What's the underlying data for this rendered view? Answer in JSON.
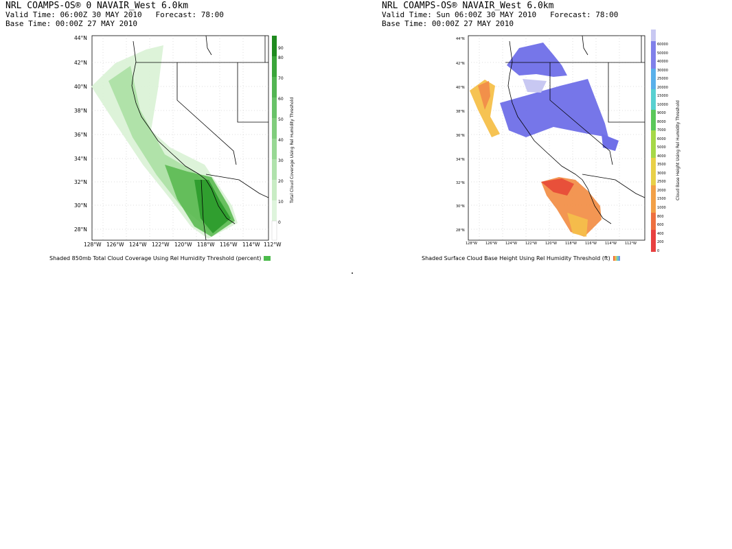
{
  "left_panel": {
    "header_line1": "NRL COAMPS-OS® 0 NAVAIR_West 6.0km",
    "header_line2": "Valid Time: 06:00Z 30 MAY 2010   Forecast: 78:00",
    "header_line3": "Base Time: 00:00Z 27 MAY 2010",
    "lat_labels": [
      "44°N",
      "42°N",
      "40°N",
      "38°N",
      "36°N",
      "34°N",
      "32°N",
      "30°N",
      "28°N"
    ],
    "lon_labels": [
      "128°W",
      "126°W",
      "124°W",
      "122°W",
      "120°W",
      "118°W",
      "116°W",
      "114°W",
      "112°W"
    ],
    "colorbar_labels": [
      "0",
      "10",
      "20",
      "30",
      "40",
      "50",
      "60",
      "70",
      "80",
      "90"
    ],
    "colorbar_title": "Total Cloud Coverage Using Rel Humidity Threshold",
    "caption": "Shaded 850mb Total Cloud Coverage Using Rel Humidity Threshold (percent)",
    "colors": {
      "light": "#d9f2d5",
      "mid": "#7fce74",
      "dark": "#2a9a2a",
      "swatch": "#4cbb4c"
    }
  },
  "right_panel": {
    "header_line1": "NRL COAMPS-OS® NAVAIR_West 6.0km",
    "header_line2": "Valid Time: Sun 06:00Z 30 MAY 2010   Forecast: 78:00",
    "header_line3": "Base Time: 00:00Z 27 MAY 2010",
    "lat_labels": [
      "44°N",
      "42°N",
      "40°N",
      "38°N",
      "36°N",
      "34°N",
      "32°N",
      "30°N",
      "28°N"
    ],
    "lon_labels": [
      "128°W",
      "126°W",
      "124°W",
      "122°W",
      "120°W",
      "118°W",
      "116°W",
      "114°W",
      "112°W"
    ],
    "colorbar_labels": [
      "0",
      "200",
      "400",
      "600",
      "800",
      "1000",
      "1500",
      "2000",
      "2500",
      "3000",
      "3500",
      "4000",
      "5000",
      "6000",
      "7000",
      "8000",
      "9000",
      "10000",
      "15000",
      "20000",
      "25000",
      "30000",
      "40000",
      "50000",
      "60000"
    ],
    "colorbar_title": "Cloud Base Height Using Rel Humidity Threshold",
    "caption": "Shaded Surface Cloud Base Height Using Rel Humidity Threshold (ft)",
    "colors": {
      "low": "#e8503a",
      "orange": "#f2904a",
      "yellow": "#f5c04a",
      "high": "#6f6fe8",
      "pale": "#c8c8f2"
    }
  }
}
